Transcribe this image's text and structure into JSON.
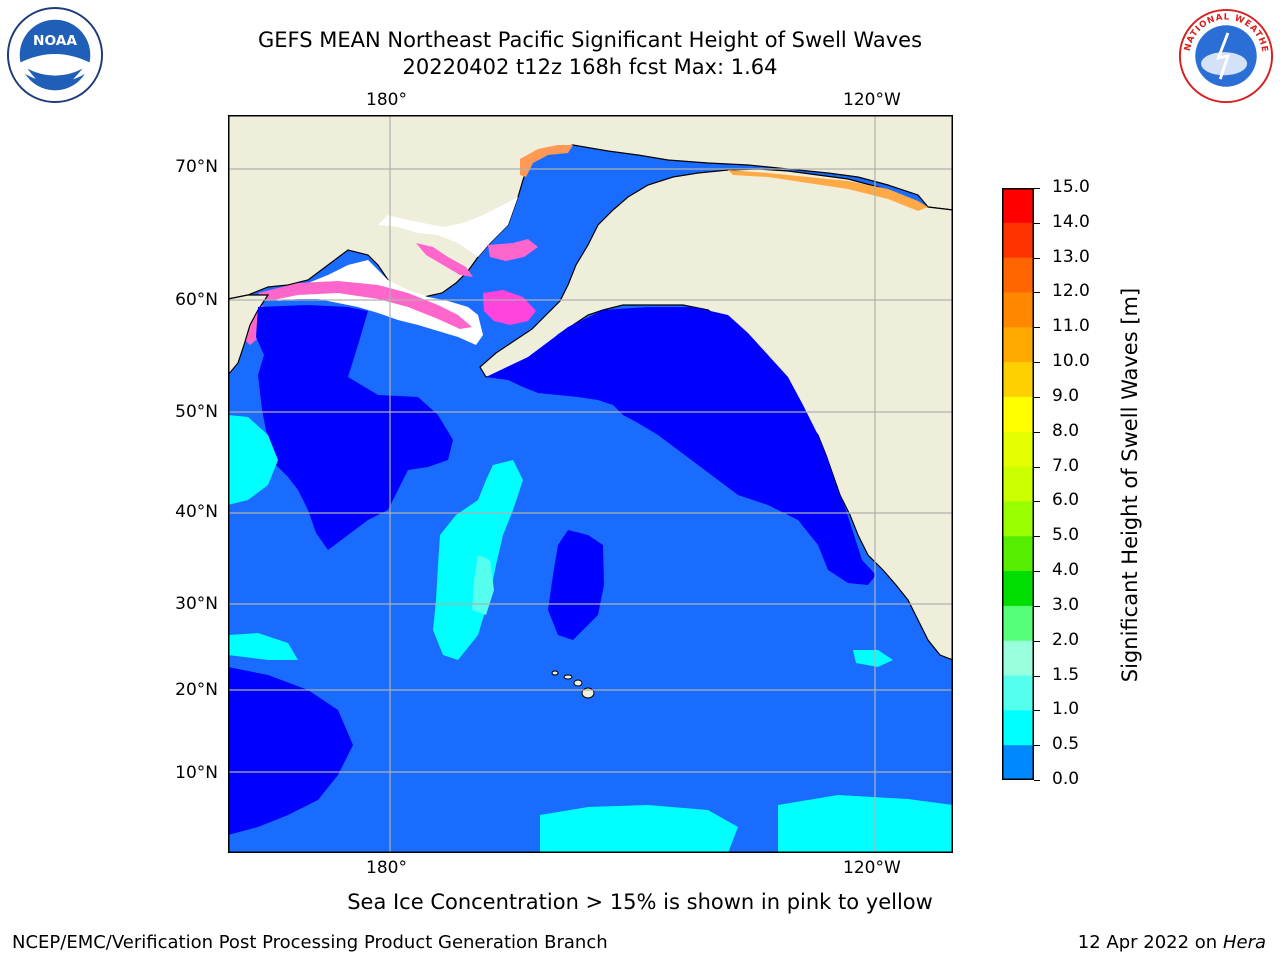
{
  "title": {
    "line1": "GEFS MEAN Northeast Pacific Significant Height of Swell Waves",
    "line2": "20220402 t12z 168h fcst   Max: 1.64"
  },
  "axes": {
    "top_labels": [
      "180°",
      "120°W"
    ],
    "bottom_labels": [
      "180°",
      "120°W"
    ],
    "lat_labels": [
      "70°N",
      "60°N",
      "50°N",
      "40°N",
      "30°N",
      "20°N",
      "10°N"
    ]
  },
  "colorbar": {
    "label": "Significant Height of Swell Waves [m]",
    "ticks": [
      "15.0",
      "14.0",
      "13.0",
      "12.0",
      "11.0",
      "10.0",
      "9.0",
      "8.0",
      "7.0",
      "6.0",
      "5.0",
      "4.0",
      "3.0",
      "2.0",
      "1.5",
      "1.0",
      "0.5",
      "0.0"
    ],
    "colors": [
      "#ff0000",
      "#ff3300",
      "#ff6600",
      "#ff8800",
      "#ffaa00",
      "#ffd000",
      "#ffff00",
      "#e6ff00",
      "#ccff00",
      "#99ff00",
      "#55ee00",
      "#00dd00",
      "#55ff77",
      "#99ffdd",
      "#55ffee",
      "#00ffff",
      "#0088ff",
      "#0000ff"
    ]
  },
  "map_colors": {
    "land": "#efeedb",
    "ice_free_white": "#ffffff",
    "swell_0_0_5": "#0000ff",
    "swell_0_5_1_0": "#1a6cff",
    "swell_1_0_1_5": "#00ffff",
    "swell_1_5_2_0": "#55ffee",
    "sea_ice_pink": "#ff66cc",
    "sea_ice_orange": "#ffaa44",
    "grid": "#b0b0b0"
  },
  "footnote": "Sea Ice Concentration > 15% is shown in pink to yellow",
  "credit": "NCEP/EMC/Verification Post Processing Product Generation Branch",
  "date_text": "12 Apr 2022 on ",
  "date_host": "Hera",
  "logos": {
    "left": "NOAA",
    "right": "NATIONAL WEATHER SERVICE"
  }
}
